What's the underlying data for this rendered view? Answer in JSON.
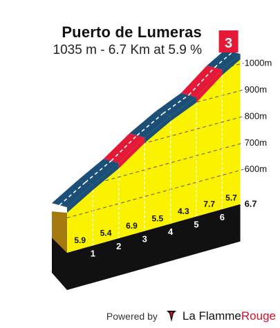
{
  "title": "Puerto de Lumeras",
  "subtitle": "1035 m - 6.7 Km at 5.9 %",
  "category_badge": "3",
  "footer": {
    "powered_by": "Powered by",
    "brand_part1": "La Flamme",
    "brand_part2": "Rouge",
    "logo_icon": "flame-icon"
  },
  "colors": {
    "profile_fill": "#fbf200",
    "side_wall": "#a47a10",
    "base": "#111111",
    "easy_band": "#1b4f78",
    "steep_band": "#e31937",
    "category_flag": "#e31937",
    "gridline": "#555555"
  },
  "chart_data": {
    "type": "area",
    "title": "Puerto de Lumeras",
    "subtitle": "1035 m - 6.7 Km at 5.9 %",
    "xlabel": "",
    "ylabel": "",
    "x_ticks": [
      "1",
      "2",
      "3",
      "4",
      "5",
      "6"
    ],
    "end_label": "6.7",
    "y_ticks": [
      "600m",
      "700m",
      "800m",
      "900m",
      "1000m"
    ],
    "y_tick_values": [
      600,
      700,
      800,
      900,
      1000
    ],
    "ylim": [
      640,
      1060
    ],
    "summit_altitude": 1035,
    "start_altitude": 640,
    "total_km": 6.7,
    "segments": [
      {
        "label": "5.9",
        "km_start": 0,
        "km_end": 1,
        "gradient": 5.9
      },
      {
        "label": "5.4",
        "km_start": 1,
        "km_end": 2,
        "gradient": 5.4
      },
      {
        "label": "6.9",
        "km_start": 2,
        "km_end": 3,
        "gradient": 6.9
      },
      {
        "label": "5.5",
        "km_start": 3,
        "km_end": 4,
        "gradient": 5.5
      },
      {
        "label": "4.3",
        "km_start": 4,
        "km_end": 5,
        "gradient": 4.3
      },
      {
        "label": "7.7",
        "km_start": 5,
        "km_end": 6,
        "gradient": 7.7
      },
      {
        "label": "5.7",
        "km_start": 6,
        "km_end": 6.7,
        "gradient": 5.7
      }
    ],
    "grid": true
  }
}
